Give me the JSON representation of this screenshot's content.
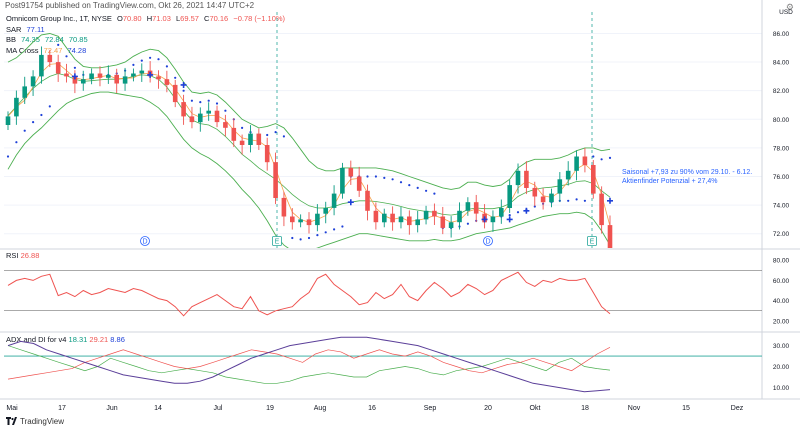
{
  "header": {
    "publisher": "Post91754 published on TradingView.com, Okt 26, 2021 14:47 UTC+2"
  },
  "legend": {
    "symbol": "Omnicom Group Inc., 1T, NYSE",
    "o_label": "O",
    "o": "70.80",
    "h_label": "H",
    "h": "71.03",
    "l_label": "L",
    "l": "69.57",
    "c_label": "C",
    "c": "70.16",
    "chg": "−0.78 (−1.10%)",
    "sar_label": "SAR",
    "sar": "77.11",
    "bb_label": "BB",
    "bb1": "74.35",
    "bb2": "72.84",
    "bb3": "70.85",
    "ma_label": "MA Cross",
    "ma1": "72.47",
    "ma2": "74.28"
  },
  "annotation": {
    "line1": "Saisonal +7,93 zu 90% vom 29.10. - 6.12.",
    "line2": "Aktienfinder Potenzial + 27,4%"
  },
  "rsi": {
    "label": "RSI",
    "value": "26.88"
  },
  "adx": {
    "label": "ADX and DI for v4",
    "v1": "18.31",
    "v2": "29.21",
    "v3": "8.86"
  },
  "footer": {
    "brand": "TradingView"
  },
  "axis": {
    "price_currency": "USD",
    "price_ticks": [
      "86.00",
      "84.00",
      "82.00",
      "80.00",
      "78.00",
      "76.00",
      "74.00",
      "72.00"
    ],
    "rsi_ticks": [
      "80.00",
      "60.00",
      "40.00",
      "20.00"
    ],
    "adx_ticks": [
      "30.00",
      "20.00",
      "10.00"
    ],
    "x_ticks": [
      "Mai",
      "17",
      "Jun",
      "14",
      "Jul",
      "19",
      "Aug",
      "16",
      "Sep",
      "20",
      "Okt",
      "18",
      "Nov",
      "15",
      "Dez"
    ]
  },
  "markers": {
    "dividend": "D",
    "earnings": "E"
  },
  "colors": {
    "up": "#089981",
    "down": "#ef5350",
    "bb": "#4caf50",
    "sar": "#1e40d8",
    "ma_fast": "#f7a14a",
    "ma_slow": "#1e40d8",
    "rsi": "#ef5350",
    "adx": "#5b3f99",
    "di_plus": "#4caf50",
    "di_minus": "#ef5350",
    "accent": "#2962ff"
  },
  "chart_data": {
    "type": "candlestick",
    "title": "Omnicom Group Inc., 1T, NYSE",
    "x": [
      "Mai",
      "17",
      "Jun",
      "14",
      "Jul",
      "19",
      "Aug",
      "16",
      "Sep",
      "20",
      "Okt",
      "18",
      "Nov",
      "15",
      "Dez"
    ],
    "y_range": [
      71.0,
      87.5
    ],
    "price_path": [
      80.2,
      81.5,
      82.3,
      83.0,
      84.5,
      84.0,
      83.2,
      83.0,
      82.5,
      82.8,
      83.2,
      82.9,
      83.1,
      82.5,
      83.0,
      83.2,
      83.4,
      83.0,
      82.8,
      82.4,
      81.2,
      80.2,
      79.8,
      80.4,
      80.6,
      79.8,
      79.4,
      78.5,
      78.2,
      79.0,
      78.2,
      77.0,
      74.5,
      73.2,
      72.8,
      73.0,
      72.6,
      73.4,
      73.8,
      74.8,
      76.6,
      76.0,
      75.0,
      73.6,
      72.8,
      73.4,
      72.8,
      73.2,
      72.6,
      73.0,
      73.6,
      73.2,
      72.4,
      72.8,
      73.6,
      74.2,
      73.4,
      72.8,
      73.2,
      73.8,
      75.4,
      76.4,
      75.2,
      74.6,
      74.2,
      74.8,
      75.8,
      76.4,
      77.4,
      76.8,
      74.8,
      72.6,
      70.2
    ],
    "bb_upper": [
      84.0,
      84.3,
      84.8,
      85.4,
      85.9,
      86.0,
      85.8,
      85.0,
      84.2,
      83.7,
      83.6,
      83.6,
      83.7,
      83.8,
      84.0,
      84.4,
      84.7,
      84.9,
      84.8,
      84.3,
      83.5,
      82.6,
      81.9,
      81.8,
      81.9,
      81.7,
      81.2,
      80.6,
      80.0,
      79.7,
      79.4,
      79.5,
      79.7,
      79.4,
      78.7,
      77.9,
      77.1,
      76.6,
      76.4,
      76.4,
      76.6,
      76.6,
      76.6,
      76.6,
      76.6,
      76.5,
      76.4,
      76.2,
      76.0,
      75.8,
      75.6,
      75.4,
      75.2,
      75.1,
      75.2,
      75.6,
      75.6,
      75.4,
      75.3,
      75.4,
      75.8,
      76.6,
      77.0,
      77.2,
      77.2,
      77.2,
      77.3,
      77.5,
      77.8,
      78.0,
      78.0,
      77.8,
      77.9
    ],
    "bb_lower": [
      76.5,
      77.5,
      78.3,
      78.9,
      79.4,
      80.0,
      80.6,
      81.1,
      81.4,
      81.6,
      81.8,
      81.9,
      81.9,
      81.8,
      81.7,
      81.6,
      81.5,
      81.2,
      80.8,
      80.2,
      79.4,
      78.6,
      78.0,
      77.6,
      77.3,
      76.9,
      76.4,
      75.8,
      75.1,
      74.5,
      73.8,
      72.9,
      71.9,
      71.2,
      70.8,
      70.7,
      70.8,
      71.0,
      71.2,
      71.4,
      71.6,
      71.8,
      72.0,
      72.0,
      71.9,
      71.8,
      71.7,
      71.6,
      71.5,
      71.5,
      71.5,
      71.6,
      71.5,
      71.5,
      71.6,
      71.8,
      72.0,
      72.1,
      72.2,
      72.3,
      72.4,
      72.6,
      72.8,
      73.0,
      73.2,
      73.3,
      73.4,
      73.4,
      73.5,
      73.4,
      73.0,
      72.2,
      71.2
    ],
    "rsi_range": [
      0,
      100
    ],
    "rsi_levels": [
      70,
      30
    ],
    "rsi": [
      55,
      60,
      62,
      60,
      64,
      66,
      45,
      48,
      44,
      50,
      46,
      48,
      52,
      50,
      48,
      52,
      50,
      46,
      42,
      40,
      34,
      25,
      34,
      38,
      42,
      46,
      40,
      34,
      32,
      44,
      30,
      26,
      30,
      32,
      34,
      42,
      48,
      62,
      66,
      56,
      50,
      44,
      36,
      38,
      48,
      42,
      46,
      56,
      44,
      40,
      50,
      58,
      52,
      44,
      48,
      56,
      52,
      46,
      50,
      60,
      64,
      68,
      58,
      54,
      60,
      58,
      62,
      60,
      60,
      62,
      48,
      34,
      27
    ],
    "adx_range": [
      0,
      40
    ],
    "adx_level": 25,
    "adx": [
      30,
      32,
      31,
      28,
      26,
      24,
      22,
      20,
      18,
      16,
      15,
      14,
      13,
      12,
      12,
      13,
      15,
      18,
      21,
      24,
      26,
      28,
      30,
      31,
      32,
      33,
      34,
      34,
      34,
      33,
      32,
      31,
      30,
      28,
      26,
      24,
      22,
      20,
      18,
      16,
      14,
      12,
      11,
      10,
      9,
      8,
      8.5,
      9
    ],
    "di_plus": [
      30,
      28,
      26,
      24,
      22,
      20,
      18,
      20,
      24,
      22,
      20,
      18,
      17,
      18,
      19,
      18,
      17,
      15,
      14,
      13,
      12,
      12,
      13,
      15,
      16,
      17,
      16,
      15,
      15,
      18,
      19,
      20,
      19,
      17,
      16,
      18,
      19,
      20,
      22,
      24,
      22,
      20,
      18,
      22,
      24,
      20,
      19,
      18.3
    ],
    "di_minus": [
      14,
      15,
      16,
      17,
      18,
      19,
      22,
      24,
      26,
      28,
      26,
      24,
      22,
      20,
      19,
      20,
      22,
      24,
      26,
      28,
      27,
      26,
      24,
      22,
      26,
      28,
      27,
      24,
      26,
      28,
      26,
      25,
      27,
      25,
      22,
      20,
      18,
      17,
      19,
      21,
      22,
      24,
      22,
      20,
      18,
      22,
      26,
      29.2
    ]
  }
}
